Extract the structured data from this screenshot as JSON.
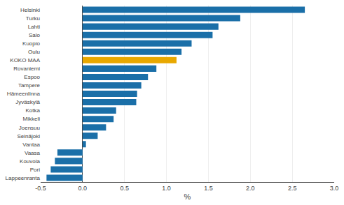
{
  "chart_data": {
    "type": "bar",
    "orientation": "horizontal",
    "categories": [
      "Helsinki",
      "Turku",
      "Lahti",
      "Salo",
      "Kuopio",
      "Oulu",
      "KOKO MAA",
      "Rovaniemi",
      "Espoo",
      "Tampere",
      "Hämeenlinna",
      "Jyväskylä",
      "Kotka",
      "Mikkeli",
      "Joensuu",
      "Seinäjoki",
      "Vantaa",
      "Vaasa",
      "Kouvola",
      "Pori",
      "Lappeenranta"
    ],
    "values": [
      2.65,
      1.88,
      1.62,
      1.55,
      1.3,
      1.18,
      1.12,
      0.88,
      0.78,
      0.7,
      0.65,
      0.64,
      0.4,
      0.37,
      0.28,
      0.18,
      0.04,
      -0.3,
      -0.33,
      -0.38,
      -0.43
    ],
    "colors": [
      "#1a6fa8",
      "#1a6fa8",
      "#1a6fa8",
      "#1a6fa8",
      "#1a6fa8",
      "#1a6fa8",
      "#e8a800",
      "#1a6fa8",
      "#1a6fa8",
      "#1a6fa8",
      "#1a6fa8",
      "#1a6fa8",
      "#1a6fa8",
      "#1a6fa8",
      "#1a6fa8",
      "#1a6fa8",
      "#1a6fa8",
      "#1a6fa8",
      "#1a6fa8",
      "#1a6fa8",
      "#1a6fa8"
    ],
    "xlabel": "%",
    "xlim": [
      -0.5,
      3.0
    ],
    "xticks": [
      -0.5,
      {
        "value": 0.0,
        "label": "0.0"
      },
      0.5,
      {
        "value": 1.0,
        "label": "1.0"
      },
      1.5,
      {
        "value": 2.0,
        "label": "2.0"
      },
      2.5,
      {
        "value": 3.0,
        "label": "3.0"
      }
    ],
    "grid": true
  }
}
